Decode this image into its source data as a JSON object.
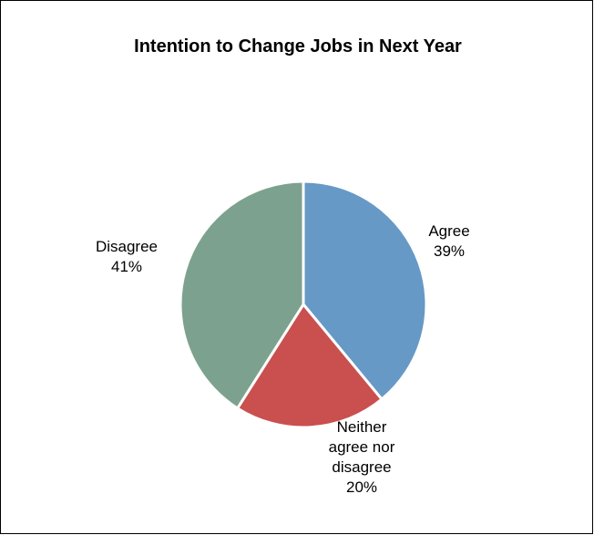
{
  "chart_data": {
    "type": "pie",
    "title": "Intention to Change Jobs in Next Year",
    "slices": [
      {
        "label_lines": [
          "Agree"
        ],
        "value": 39,
        "value_label": "39%",
        "color": "#6699C6"
      },
      {
        "label_lines": [
          "Neither",
          "agree nor",
          "disagree"
        ],
        "value": 20,
        "value_label": "20%",
        "color": "#C9504E"
      },
      {
        "label_lines": [
          "Disagree"
        ],
        "value": 41,
        "value_label": "41%",
        "color": "#7CA28F"
      }
    ],
    "start_angle": "12 o'clock",
    "direction": "clockwise",
    "legend": "none",
    "slice_border_color": "#FFFFFF"
  }
}
